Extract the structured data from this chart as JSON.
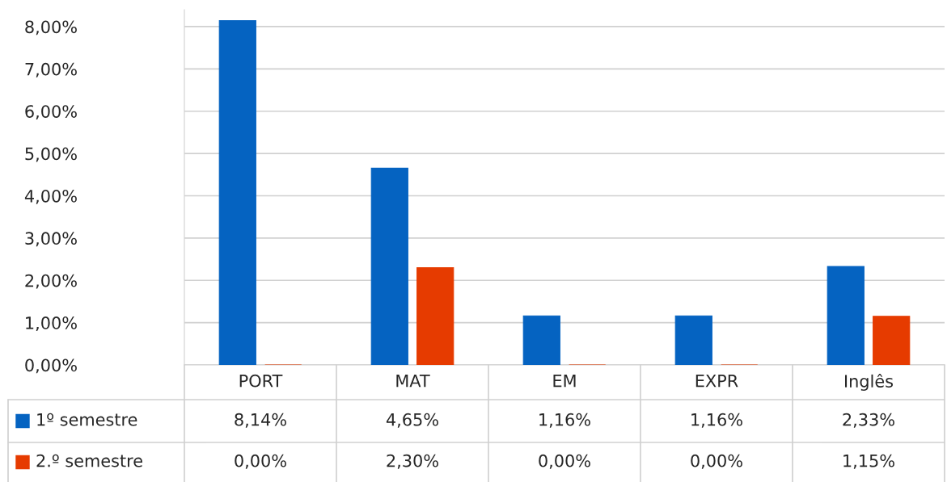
{
  "chart_data": {
    "type": "bar",
    "categories": [
      "PORT",
      "MAT",
      "EM",
      "EXPR",
      "Inglês"
    ],
    "series": [
      {
        "name": "1º semestre",
        "color": "#0563c1",
        "values": [
          8.14,
          4.65,
          1.16,
          1.16,
          2.33
        ],
        "value_labels": [
          "8,14%",
          "4,65%",
          "1,16%",
          "1,16%",
          "2,33%"
        ]
      },
      {
        "name": "2.º semestre",
        "color": "#e63b00",
        "values": [
          0.0,
          2.3,
          0.0,
          0.0,
          1.15
        ],
        "value_labels": [
          "0,00%",
          "2,30%",
          "0,00%",
          "0,00%",
          "1,15%"
        ]
      }
    ],
    "ylim": [
      0,
      8.4
    ],
    "yticks": [
      {
        "value": 0,
        "label": "0,00%"
      },
      {
        "value": 1,
        "label": "1,00%"
      },
      {
        "value": 2,
        "label": "2,00%"
      },
      {
        "value": 3,
        "label": "3,00%"
      },
      {
        "value": 4,
        "label": "4,00%"
      },
      {
        "value": 5,
        "label": "5,00%"
      },
      {
        "value": 6,
        "label": "6,00%"
      },
      {
        "value": 7,
        "label": "7,00%"
      },
      {
        "value": 8,
        "label": "8,00%"
      }
    ],
    "grid": "y",
    "legend": "bottom"
  }
}
